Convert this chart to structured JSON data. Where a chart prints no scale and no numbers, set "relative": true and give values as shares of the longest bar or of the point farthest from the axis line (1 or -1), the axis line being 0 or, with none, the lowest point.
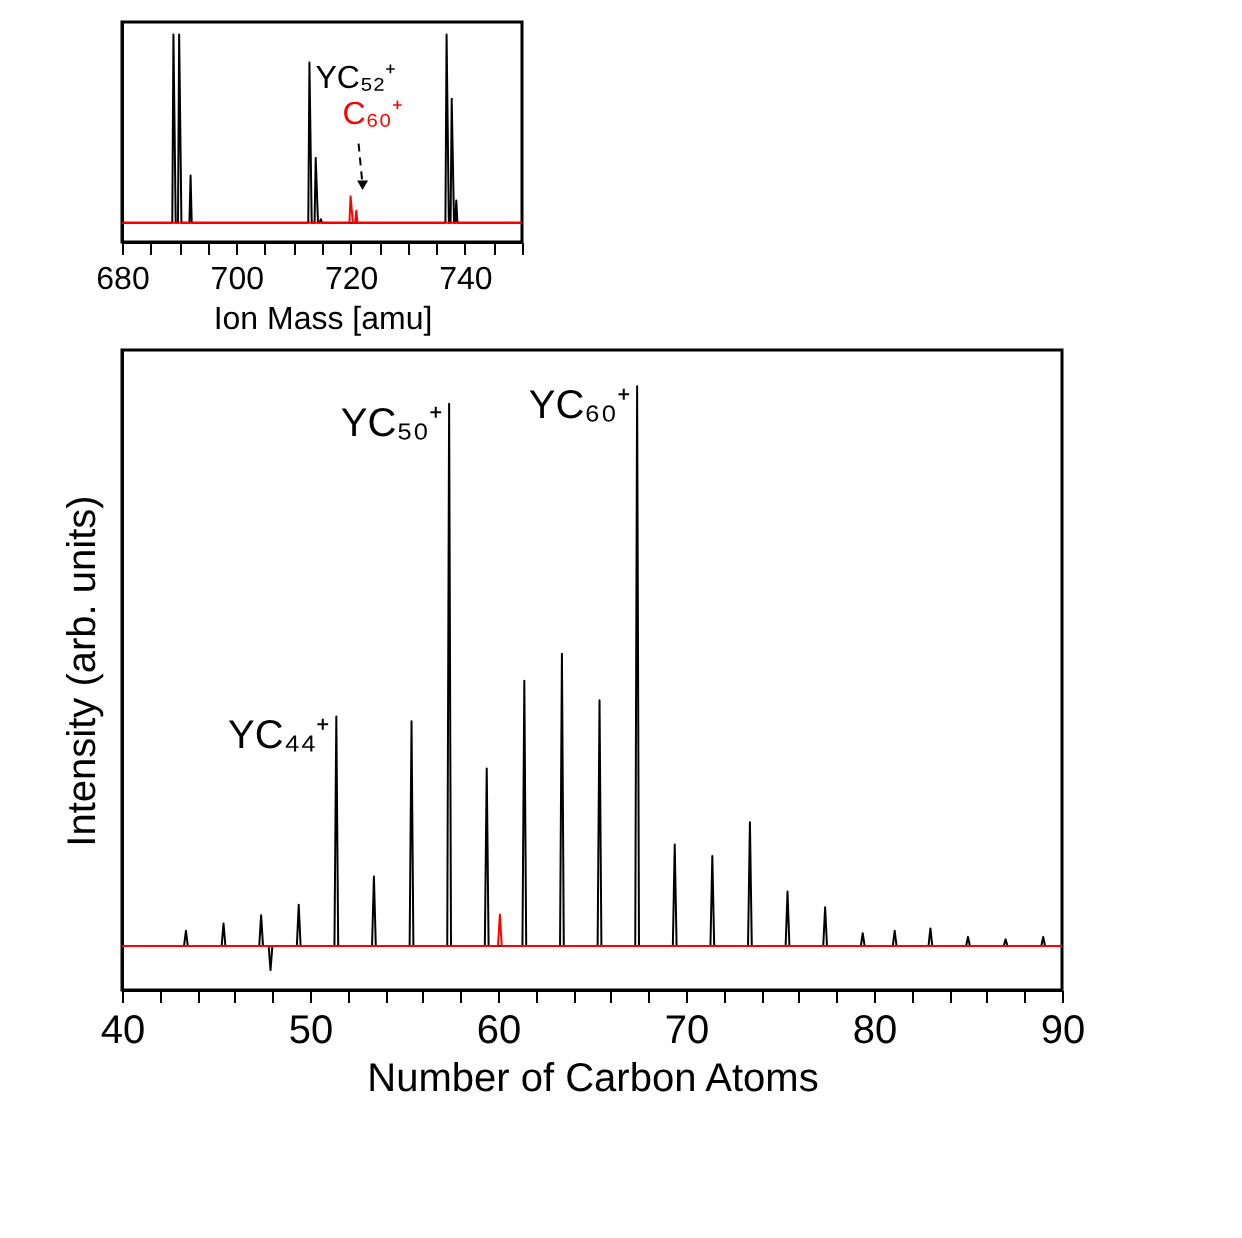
{
  "chart_data": [
    {
      "type": "line",
      "relative": true,
      "xlabel": "Number of Carbon Atoms",
      "ylabel": "Intensity (arb. units)",
      "xlim": [
        40,
        90
      ],
      "xticks": [
        40,
        {
          "value": 42,
          "label": null
        },
        {
          "value": 44,
          "label": null
        },
        {
          "value": 46,
          "label": null
        },
        {
          "value": 48,
          "label": null
        },
        50,
        {
          "value": 52,
          "label": null
        },
        {
          "value": 54,
          "label": null
        },
        {
          "value": 56,
          "label": null
        },
        {
          "value": 58,
          "label": null
        },
        60,
        {
          "value": 62,
          "label": null
        },
        {
          "value": 64,
          "label": null
        },
        {
          "value": 66,
          "label": null
        },
        {
          "value": 68,
          "label": null
        },
        70,
        {
          "value": 72,
          "label": null
        },
        {
          "value": 74,
          "label": null
        },
        {
          "value": 76,
          "label": null
        },
        {
          "value": 78,
          "label": null
        },
        80,
        {
          "value": 82,
          "label": null
        },
        {
          "value": 84,
          "label": null
        },
        {
          "value": 86,
          "label": null
        },
        {
          "value": 88,
          "label": null
        },
        90
      ],
      "tick_labels": "x",
      "grid": false,
      "legend": false,
      "marker": "none",
      "line_style": "solid",
      "series": [
        {
          "color": "#000000",
          "x": [
            40,
            43.3,
            43.4,
            43.5,
            45.3,
            45.4,
            45.5,
            47.3,
            47.4,
            47.5,
            47.8,
            47.9,
            48.0,
            49.3,
            49.4,
            49.5,
            51.3,
            51.4,
            51.5,
            53.3,
            53.4,
            53.5,
            55.3,
            55.4,
            55.5,
            57.3,
            57.4,
            57.5,
            59.3,
            59.4,
            59.5,
            61.3,
            61.4,
            61.5,
            63.3,
            63.4,
            63.5,
            65.3,
            65.4,
            65.5,
            67.3,
            67.4,
            67.5,
            69.3,
            69.4,
            69.5,
            71.3,
            71.4,
            71.5,
            73.3,
            73.4,
            73.5,
            75.3,
            75.4,
            75.5,
            77.3,
            77.4,
            77.5,
            79.3,
            79.4,
            79.5,
            81.0,
            81.1,
            81.2,
            82.9,
            83.0,
            83.1,
            84.9,
            85.0,
            85.1,
            86.9,
            87.0,
            87.1,
            88.9,
            89.0,
            89.1,
            90
          ],
          "values": [
            0.073,
            0.073,
            0.098,
            0.073,
            0.073,
            0.11,
            0.073,
            0.073,
            0.124,
            0.073,
            0.073,
            0.033,
            0.073,
            0.073,
            0.141,
            0.073,
            0.073,
            0.453,
            0.073,
            0.073,
            0.188,
            0.073,
            0.073,
            0.445,
            0.073,
            0.073,
            0.971,
            0.073,
            0.073,
            0.367,
            0.073,
            0.073,
            0.512,
            0.073,
            0.073,
            0.557,
            0.073,
            0.073,
            0.48,
            0.073,
            0.073,
            1,
            0.073,
            0.073,
            0.241,
            0.073,
            0.073,
            0.222,
            0.073,
            0.073,
            0.278,
            0.073,
            0.073,
            0.163,
            0.073,
            0.073,
            0.137,
            0.073,
            0.073,
            0.094,
            0.073,
            0.073,
            0.098,
            0.073,
            0.073,
            0.102,
            0.073,
            0.073,
            0.088,
            0.073,
            0.073,
            0.084,
            0.073,
            0.073,
            0.088,
            0.073,
            0.073
          ]
        },
        {
          "color": "#ff0000",
          "x": [
            40,
            60.0,
            60.1,
            60.2,
            90
          ],
          "values": [
            0.073,
            0.073,
            0.125,
            0.073,
            0.073
          ]
        }
      ],
      "annotations": [
        {
          "text": "YC₄₄⁺",
          "x": 51.4,
          "y": 0.453
        },
        {
          "text": "YC₅₀⁺",
          "x": 57.4,
          "y": 0.971
        },
        {
          "text": "YC₆₀⁺",
          "x": 67.4,
          "y": 1
        }
      ]
    },
    {
      "type": "line",
      "relative": true,
      "xlabel": "Ion Mass [amu]",
      "xlim": [
        680,
        750
      ],
      "xticks": [
        680,
        {
          "value": 685,
          "label": null
        },
        {
          "value": 690,
          "label": null
        },
        {
          "value": 695,
          "label": null
        },
        700,
        {
          "value": 705,
          "label": null
        },
        {
          "value": 710,
          "label": null
        },
        {
          "value": 715,
          "label": null
        },
        720,
        {
          "value": 725,
          "label": null
        },
        {
          "value": 730,
          "label": null
        },
        {
          "value": 735,
          "label": null
        },
        740,
        {
          "value": 745,
          "label": null
        },
        {
          "value": 750,
          "label": null
        }
      ],
      "tick_labels": "x",
      "grid": false,
      "legend": false,
      "marker": "none",
      "line_style": "solid",
      "series": [
        {
          "color": "#000000",
          "x": [
            680,
            688.8,
            689.0,
            689.4,
            689.8,
            690.0,
            690.4,
            691.8,
            692.0,
            692.2,
            712.6,
            712.8,
            713.2,
            713.7,
            713.9,
            714.3,
            714.6,
            714.8,
            715.0,
            736.6,
            736.8,
            737.2,
            737.5,
            737.7,
            738.1,
            738.3,
            738.5,
            738.7,
            750
          ],
          "values": [
            0.093,
            0.093,
            1,
            0.093,
            0.093,
            1,
            0.093,
            0.093,
            0.32,
            0.093,
            0.093,
            0.865,
            0.093,
            0.093,
            0.405,
            0.093,
            0.093,
            0.11,
            0.093,
            0.093,
            1,
            0.093,
            0.093,
            0.69,
            0.093,
            0.093,
            0.2,
            0.093,
            0.093
          ]
        },
        {
          "color": "#ff0000",
          "x": [
            680,
            719.8,
            720.0,
            720.4,
            720.8,
            721.0,
            721.2,
            750
          ],
          "values": [
            0.093,
            0.093,
            0.22,
            0.093,
            0.093,
            0.15,
            0.093,
            0.093
          ]
        }
      ],
      "annotations": [
        {
          "text": "YC₅₂⁺",
          "x": 712.8,
          "y": 0.865
        },
        {
          "text": "C₆₀⁺",
          "x": 720.0,
          "y": 0.22
        }
      ]
    }
  ]
}
